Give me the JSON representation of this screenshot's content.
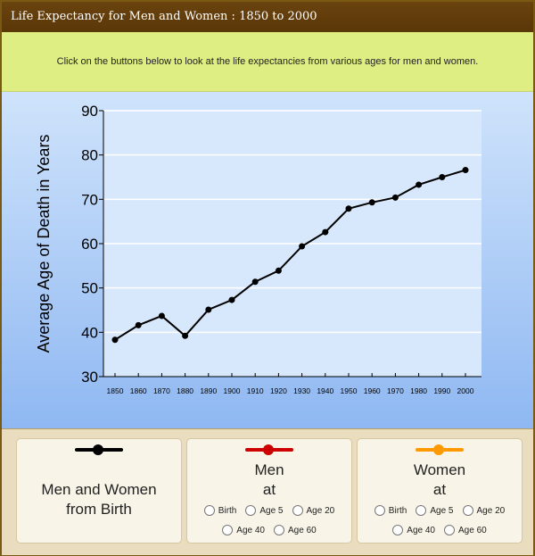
{
  "title": "Life Expectancy for Men and Women : 1850 to 2000",
  "instruction": "Click on the buttons below to look at the life expectancies from various ages for men and women.",
  "colors": {
    "men_women": "#000000",
    "men": "#cc0000",
    "women": "#ff9900"
  },
  "chart_data": {
    "type": "line",
    "ylabel": "Average Age of Death in Years",
    "xlabel": "",
    "ylim": [
      30,
      90
    ],
    "yticks": [
      30,
      40,
      50,
      60,
      70,
      80,
      90
    ],
    "grid": true,
    "x": [
      1850,
      1860,
      1870,
      1880,
      1890,
      1900,
      1910,
      1920,
      1930,
      1940,
      1950,
      1960,
      1970,
      1980,
      1990,
      2000
    ],
    "series": [
      {
        "values": [
          38.3,
          41.6,
          43.7,
          39.2,
          45.1,
          47.3,
          51.4,
          53.9,
          59.4,
          62.6,
          67.9,
          69.3,
          70.4,
          73.3,
          75.0,
          76.6
        ]
      }
    ]
  },
  "controls": {
    "men_women": {
      "label_line1": "Men and Women",
      "label_line2": "from Birth"
    },
    "men": {
      "title_line1": "Men",
      "title_line2": "at",
      "options": [
        "Birth",
        "Age 5",
        "Age 20",
        "Age 40",
        "Age 60"
      ]
    },
    "women": {
      "title_line1": "Women",
      "title_line2": "at",
      "options": [
        "Birth",
        "Age 5",
        "Age 20",
        "Age 40",
        "Age 60"
      ]
    }
  }
}
